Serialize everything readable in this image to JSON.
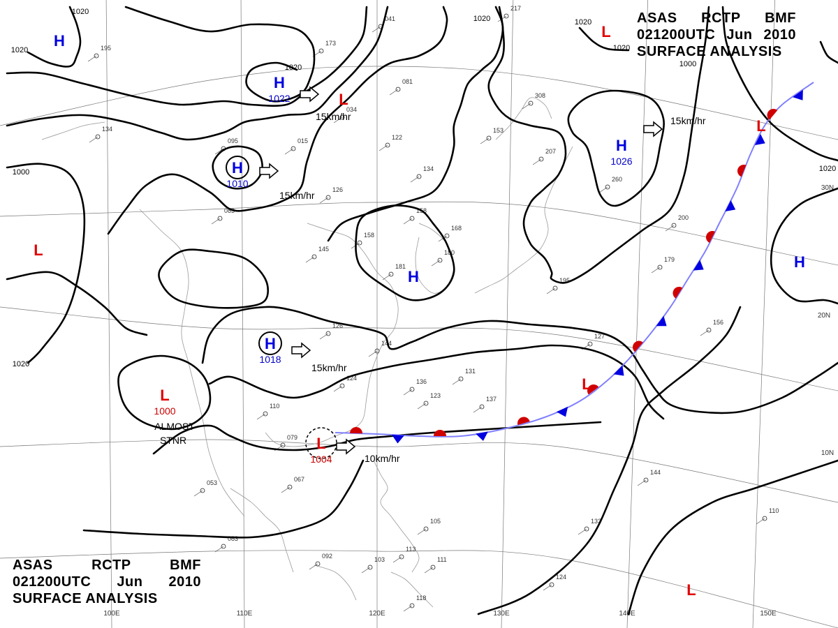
{
  "header_top": {
    "line1": [
      "ASAS",
      "RCTP",
      "BMF"
    ],
    "line2": [
      "021200UTC",
      "Jun",
      "2010"
    ],
    "line3": "SURFACE ANALYSIS"
  },
  "header_bottom": {
    "line1": [
      "ASAS",
      "RCTP",
      "BMF"
    ],
    "line2": [
      "021200UTC",
      "Jun",
      "2010"
    ],
    "line3": "SURFACE ANALYSIS"
  },
  "colors": {
    "low": "#e00000",
    "high": "#0000e0",
    "front": "#d00000",
    "frontBlue": "#0000e0"
  },
  "pressure_centers": [
    {
      "type": "H",
      "label": "H",
      "value": ""
    },
    {
      "type": "H",
      "label": "H",
      "value": "1022"
    },
    {
      "type": "L",
      "label": "L",
      "value": ""
    },
    {
      "type": "L",
      "label": "L",
      "value": ""
    },
    {
      "type": "H",
      "label": "H",
      "value": "1026"
    },
    {
      "type": "H",
      "label": "H",
      "value": "1010"
    },
    {
      "type": "L",
      "label": "L",
      "value": ""
    },
    {
      "type": "H",
      "label": "H",
      "value": ""
    },
    {
      "type": "H",
      "label": "H",
      "value": ""
    },
    {
      "type": "H",
      "label": "H",
      "value": "1018"
    },
    {
      "type": "L",
      "label": "L",
      "value": "1000"
    },
    {
      "type": "L",
      "label": "L",
      "value": "1004"
    },
    {
      "type": "L",
      "label": "L",
      "value": ""
    },
    {
      "type": "L",
      "label": "L",
      "value": ""
    },
    {
      "type": "L",
      "label": "L",
      "value": ""
    }
  ],
  "movements": [
    "15km/hr",
    "15km/hr",
    "15km/hr",
    "15km/hr",
    "10km/hr"
  ],
  "note": [
    "ALMOST",
    "STNR"
  ],
  "isobar_labels": [
    "1020",
    "1020",
    "1020",
    "1020",
    "1020",
    "1020",
    "1000",
    "1000",
    "1020",
    "1020"
  ],
  "graticule": {
    "lon": [
      "110E",
      "120E",
      "130E",
      "140E",
      "150E",
      "100E"
    ],
    "lat": [
      "30N",
      "20N",
      "10N"
    ]
  },
  "stations": [
    "195",
    "134",
    "095",
    "015",
    "173",
    "034",
    "081",
    "122",
    "134",
    "153",
    "308",
    "207",
    "041",
    "126",
    "083",
    "158",
    "158",
    "168",
    "180",
    "181",
    "145",
    "126",
    "144",
    "124",
    "136",
    "131",
    "123",
    "137",
    "110",
    "079",
    "067",
    "053",
    "083",
    "092",
    "103",
    "113",
    "105",
    "111",
    "118",
    "133",
    "124",
    "144",
    "110",
    "127",
    "156",
    "179",
    "200",
    "195",
    "260",
    "217"
  ]
}
